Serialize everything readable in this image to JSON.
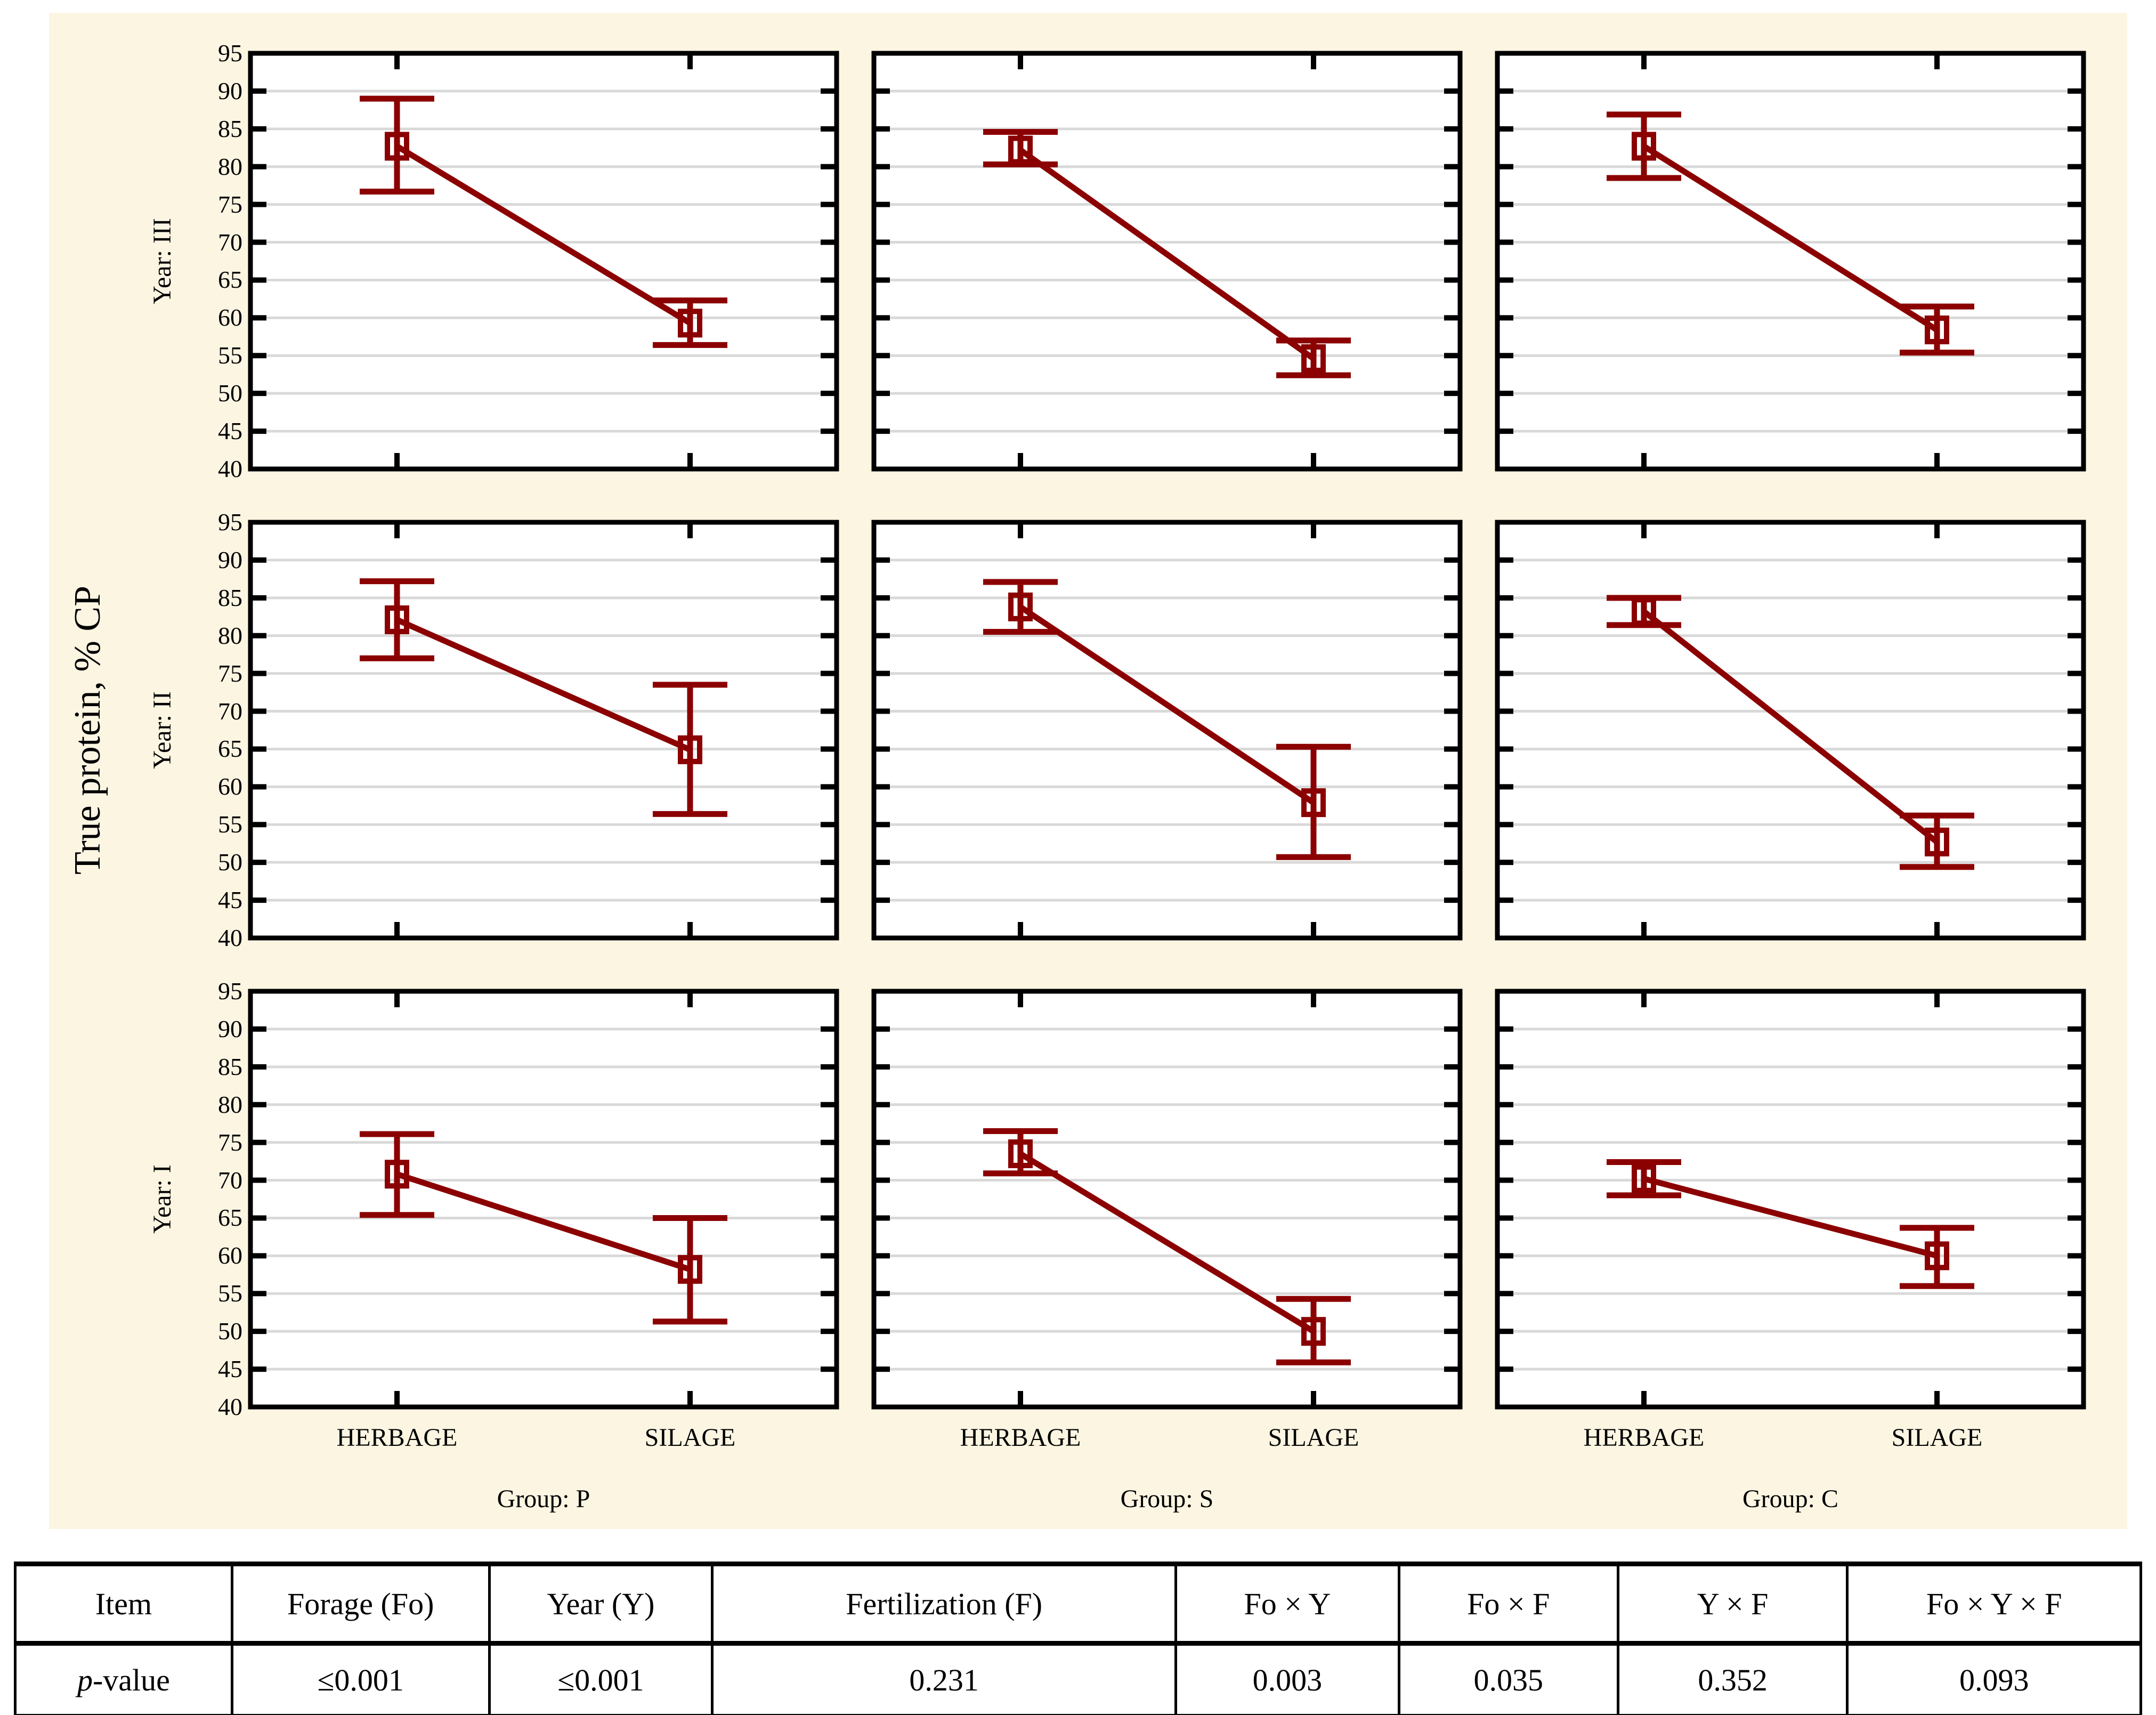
{
  "colors": {
    "series": "#8b0000",
    "grid": "#d9d9d9",
    "frame": "#000000",
    "panel_bg": "#fbf5e2",
    "plot_bg": "#ffffff"
  },
  "chart_data": {
    "type": "line",
    "description": "3x3 trellis of mean plots with 95% confidence error bars (hollow square markers)",
    "ylabel": "True protein, % CP",
    "ylim": [
      40,
      95
    ],
    "yticks": [
      40,
      45,
      50,
      55,
      60,
      65,
      70,
      75,
      80,
      85,
      90,
      95
    ],
    "grid_on": true,
    "categories": [
      "HERBAGE",
      "SILAGE"
    ],
    "grid_rows": [
      {
        "label": "Year: III"
      },
      {
        "label": "Year: II"
      },
      {
        "label": "Year: I"
      }
    ],
    "grid_cols": [
      {
        "label": "Group: P"
      },
      {
        "label": "Group: S"
      },
      {
        "label": "Group: C"
      }
    ],
    "panels": [
      {
        "row": "Year: III",
        "col": "Group: P",
        "points": [
          {
            "cat": "HERBAGE",
            "mean": 82.7,
            "ci_low": 76.7,
            "ci_high": 89.0
          },
          {
            "cat": "SILAGE",
            "mean": 59.3,
            "ci_low": 56.4,
            "ci_high": 62.3
          }
        ]
      },
      {
        "row": "Year: III",
        "col": "Group: S",
        "points": [
          {
            "cat": "HERBAGE",
            "mean": 82.2,
            "ci_low": 80.3,
            "ci_high": 84.6
          },
          {
            "cat": "SILAGE",
            "mean": 54.6,
            "ci_low": 52.4,
            "ci_high": 57.0
          }
        ]
      },
      {
        "row": "Year: III",
        "col": "Group: C",
        "points": [
          {
            "cat": "HERBAGE",
            "mean": 82.7,
            "ci_low": 78.5,
            "ci_high": 86.9
          },
          {
            "cat": "SILAGE",
            "mean": 58.4,
            "ci_low": 55.4,
            "ci_high": 61.5
          }
        ]
      },
      {
        "row": "Year: II",
        "col": "Group: P",
        "points": [
          {
            "cat": "HERBAGE",
            "mean": 82.1,
            "ci_low": 77.0,
            "ci_high": 87.2
          },
          {
            "cat": "SILAGE",
            "mean": 64.9,
            "ci_low": 56.4,
            "ci_high": 73.5
          }
        ]
      },
      {
        "row": "Year: II",
        "col": "Group: S",
        "points": [
          {
            "cat": "HERBAGE",
            "mean": 83.8,
            "ci_low": 80.5,
            "ci_high": 87.1
          },
          {
            "cat": "SILAGE",
            "mean": 57.9,
            "ci_low": 50.7,
            "ci_high": 65.3
          }
        ]
      },
      {
        "row": "Year: II",
        "col": "Group: C",
        "points": [
          {
            "cat": "HERBAGE",
            "mean": 83.2,
            "ci_low": 81.4,
            "ci_high": 85.0
          },
          {
            "cat": "SILAGE",
            "mean": 52.7,
            "ci_low": 49.4,
            "ci_high": 56.2
          }
        ]
      },
      {
        "row": "Year: I",
        "col": "Group: P",
        "points": [
          {
            "cat": "HERBAGE",
            "mean": 70.8,
            "ci_low": 65.4,
            "ci_high": 76.1
          },
          {
            "cat": "SILAGE",
            "mean": 58.2,
            "ci_low": 51.3,
            "ci_high": 65.0
          }
        ]
      },
      {
        "row": "Year: I",
        "col": "Group: S",
        "points": [
          {
            "cat": "HERBAGE",
            "mean": 73.5,
            "ci_low": 70.9,
            "ci_high": 76.5
          },
          {
            "cat": "SILAGE",
            "mean": 50.0,
            "ci_low": 45.9,
            "ci_high": 54.3
          }
        ]
      },
      {
        "row": "Year: I",
        "col": "Group: C",
        "points": [
          {
            "cat": "HERBAGE",
            "mean": 70.2,
            "ci_low": 68.0,
            "ci_high": 72.4
          },
          {
            "cat": "SILAGE",
            "mean": 60.0,
            "ci_low": 56.0,
            "ci_high": 63.7
          }
        ]
      }
    ]
  },
  "table": {
    "headers": [
      "Item",
      "Forage (Fo)",
      "Year (Y)",
      "Fertilization (F)",
      "Fo × Y",
      "Fo × F",
      "Y × F",
      "Fo × Y × F"
    ],
    "rows": [
      [
        "p-value",
        "≤0.001",
        "≤0.001",
        "0.231",
        "0.003",
        "0.035",
        "0.352",
        "0.093"
      ]
    ]
  }
}
